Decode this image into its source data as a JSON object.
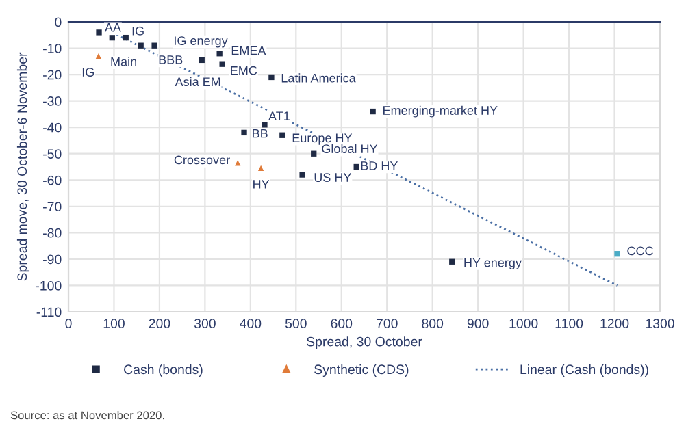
{
  "chart_data": {
    "type": "scatter",
    "xlabel": "Spread, 30 October",
    "ylabel": "Spread move, 30 October-6 November",
    "xlim": [
      0,
      1300
    ],
    "xticks": [
      0,
      100,
      200,
      300,
      400,
      500,
      600,
      700,
      800,
      900,
      1000,
      1100,
      1200,
      1300
    ],
    "ylim": [
      -110,
      0
    ],
    "yticks": [
      0,
      -10,
      -20,
      -30,
      -40,
      -50,
      -60,
      -70,
      -80,
      -90,
      -100,
      -110
    ],
    "grid": true,
    "legend": "bottom",
    "series": [
      {
        "name": "Cash (bonds)",
        "marker": "square",
        "color": "#1f2a44",
        "x": [
          67,
          96,
          126,
          159,
          189,
          293,
          332,
          338,
          446,
          431,
          386,
          470,
          539,
          669,
          514,
          633,
          843,
          1206
        ],
        "values": [
          -4,
          -6,
          -6,
          -9,
          -9,
          -14.5,
          -12,
          -16,
          -21,
          -39,
          -42,
          -43,
          -50,
          -34,
          -58,
          -55,
          -91,
          -88
        ],
        "colors": [
          "#1f2a44",
          "#1f2a44",
          "#1f2a44",
          "#1f2a44",
          "#1f2a44",
          "#1f2a44",
          "#1f2a44",
          "#1f2a44",
          "#1f2a44",
          "#1f2a44",
          "#1f2a44",
          "#1f2a44",
          "#1f2a44",
          "#1f2a44",
          "#1f2a44",
          "#1f2a44",
          "#1f2a44",
          "#4bacc6"
        ]
      },
      {
        "name": "Synthetic (CDS)",
        "marker": "triangle",
        "color": "#e07b39",
        "x": [
          66,
          372,
          423
        ],
        "values": [
          -13,
          -53.5,
          -55.5
        ]
      },
      {
        "name": "Linear (Cash (bonds))",
        "type": "line",
        "line_style": "dotted",
        "marker": "none",
        "color": "#4a6fa5",
        "x": [
          96,
          1206
        ],
        "values": [
          -4,
          -100
        ]
      }
    ],
    "annotations": [
      {
        "text": "AA",
        "x": 67,
        "y": -4
      },
      {
        "text": "IG",
        "x": 126,
        "y": -6
      },
      {
        "text": "IG energy",
        "x": 189,
        "y": -9
      },
      {
        "text": "Main",
        "x": 159,
        "y": -9
      },
      {
        "text": "BBB",
        "x": 189,
        "y": -9
      },
      {
        "text": "EMEA",
        "x": 332,
        "y": -12
      },
      {
        "text": "Asia EM",
        "x": 293,
        "y": -14.5
      },
      {
        "text": "EMC",
        "x": 338,
        "y": -16
      },
      {
        "text": "Latin America",
        "x": 446,
        "y": -21
      },
      {
        "text": "AT1",
        "x": 431,
        "y": -39
      },
      {
        "text": "BB",
        "x": 386,
        "y": -42
      },
      {
        "text": "Europe HY",
        "x": 470,
        "y": -43
      },
      {
        "text": "Global HY",
        "x": 539,
        "y": -50
      },
      {
        "text": "Emerging-market HY",
        "x": 669,
        "y": -34
      },
      {
        "text": "BD HY",
        "x": 633,
        "y": -55
      },
      {
        "text": "US HY",
        "x": 514,
        "y": -58
      },
      {
        "text": "HY energy",
        "x": 843,
        "y": -91
      },
      {
        "text": "CCC",
        "x": 1206,
        "y": -88
      },
      {
        "text": "IG",
        "x": 66,
        "y": -13
      },
      {
        "text": "Crossover",
        "x": 372,
        "y": -53.5
      },
      {
        "text": "HY",
        "x": 423,
        "y": -55.5
      },
      "Source: as at November 2020."
    ]
  }
}
